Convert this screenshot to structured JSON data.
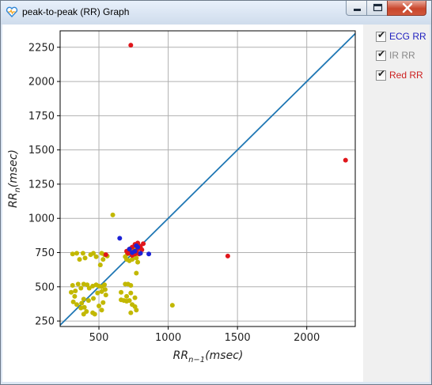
{
  "window": {
    "title": "peak-to-peak (RR) Graph",
    "controls": {
      "minimize_icon": "minimize-icon",
      "maximize_icon": "maximize-icon",
      "close_icon": "close-icon"
    }
  },
  "legend": {
    "items": [
      {
        "label": "ECG RR",
        "checked": true,
        "color": "#1f1fbf"
      },
      {
        "label": "IR RR",
        "checked": true,
        "color": "#888888"
      },
      {
        "label": "Red RR",
        "checked": true,
        "color": "#cc1f1f"
      }
    ]
  },
  "chart_data": {
    "type": "scatter",
    "xlabel_base": "RR",
    "xlabel_sub": "n−1",
    "xlabel_unit": "(msec)",
    "ylabel_base": "RR",
    "ylabel_sub": "n",
    "ylabel_unit": "(msec)",
    "xlim": [
      220,
      2350
    ],
    "ylim": [
      210,
      2370
    ],
    "xticks": [
      500,
      1000,
      1500,
      2000
    ],
    "yticks": [
      250,
      500,
      750,
      1000,
      1250,
      1500,
      1750,
      2000,
      2250
    ],
    "grid": true,
    "identity_line": {
      "from": [
        220,
        220
      ],
      "to": [
        2350,
        2350
      ],
      "color": "#1f77b4"
    },
    "series": [
      {
        "color": "#c2b800",
        "points": [
          [
            310,
            740
          ],
          [
            340,
            745
          ],
          [
            360,
            700
          ],
          [
            385,
            745
          ],
          [
            400,
            710
          ],
          [
            440,
            735
          ],
          [
            460,
            745
          ],
          [
            480,
            720
          ],
          [
            520,
            745
          ],
          [
            540,
            735
          ],
          [
            530,
            700
          ],
          [
            510,
            660
          ],
          [
            560,
            725
          ],
          [
            600,
            1025
          ],
          [
            1030,
            365
          ],
          [
            310,
            510
          ],
          [
            330,
            470
          ],
          [
            325,
            430
          ],
          [
            350,
            520
          ],
          [
            370,
            490
          ],
          [
            390,
            520
          ],
          [
            415,
            515
          ],
          [
            430,
            490
          ],
          [
            455,
            505
          ],
          [
            480,
            515
          ],
          [
            500,
            505
          ],
          [
            520,
            500
          ],
          [
            540,
            515
          ],
          [
            545,
            480
          ],
          [
            520,
            465
          ],
          [
            490,
            455
          ],
          [
            460,
            415
          ],
          [
            425,
            400
          ],
          [
            390,
            410
          ],
          [
            375,
            380
          ],
          [
            395,
            350
          ],
          [
            410,
            320
          ],
          [
            390,
            300
          ],
          [
            455,
            310
          ],
          [
            470,
            300
          ],
          [
            315,
            390
          ],
          [
            340,
            370
          ],
          [
            370,
            345
          ],
          [
            300,
            460
          ],
          [
            500,
            360
          ],
          [
            520,
            330
          ],
          [
            530,
            385
          ],
          [
            550,
            440
          ],
          [
            660,
            460
          ],
          [
            680,
            400
          ],
          [
            700,
            430
          ],
          [
            720,
            400
          ],
          [
            730,
            455
          ],
          [
            760,
            420
          ],
          [
            740,
            370
          ],
          [
            760,
            355
          ],
          [
            770,
            330
          ],
          [
            730,
            310
          ],
          [
            700,
            395
          ],
          [
            660,
            405
          ],
          [
            690,
            520
          ],
          [
            710,
            520
          ],
          [
            730,
            510
          ],
          [
            770,
            600
          ],
          [
            780,
            680
          ],
          [
            690,
            720
          ],
          [
            705,
            740
          ],
          [
            720,
            755
          ],
          [
            735,
            760
          ],
          [
            750,
            745
          ],
          [
            760,
            730
          ],
          [
            770,
            710
          ],
          [
            740,
            700
          ],
          [
            720,
            690
          ],
          [
            700,
            700
          ],
          [
            760,
            770
          ],
          [
            745,
            775
          ],
          [
            730,
            780
          ]
        ]
      },
      {
        "color": "#e0161b",
        "points": [
          [
            730,
            2265
          ],
          [
            2280,
            1425
          ],
          [
            1430,
            725
          ],
          [
            550,
            735
          ],
          [
            710,
            745
          ],
          [
            720,
            760
          ],
          [
            730,
            745
          ],
          [
            740,
            730
          ],
          [
            750,
            755
          ],
          [
            760,
            740
          ],
          [
            770,
            760
          ],
          [
            780,
            775
          ],
          [
            790,
            800
          ],
          [
            760,
            810
          ],
          [
            800,
            790
          ],
          [
            810,
            770
          ],
          [
            820,
            815
          ],
          [
            780,
            820
          ],
          [
            740,
            790
          ],
          [
            720,
            775
          ],
          [
            700,
            760
          ],
          [
            790,
            740
          ]
        ]
      },
      {
        "color": "#1c22d6",
        "points": [
          [
            650,
            855
          ],
          [
            860,
            740
          ],
          [
            720,
            775
          ],
          [
            760,
            760
          ],
          [
            780,
            790
          ],
          [
            800,
            745
          ],
          [
            740,
            750
          ],
          [
            770,
            800
          ]
        ]
      }
    ]
  }
}
